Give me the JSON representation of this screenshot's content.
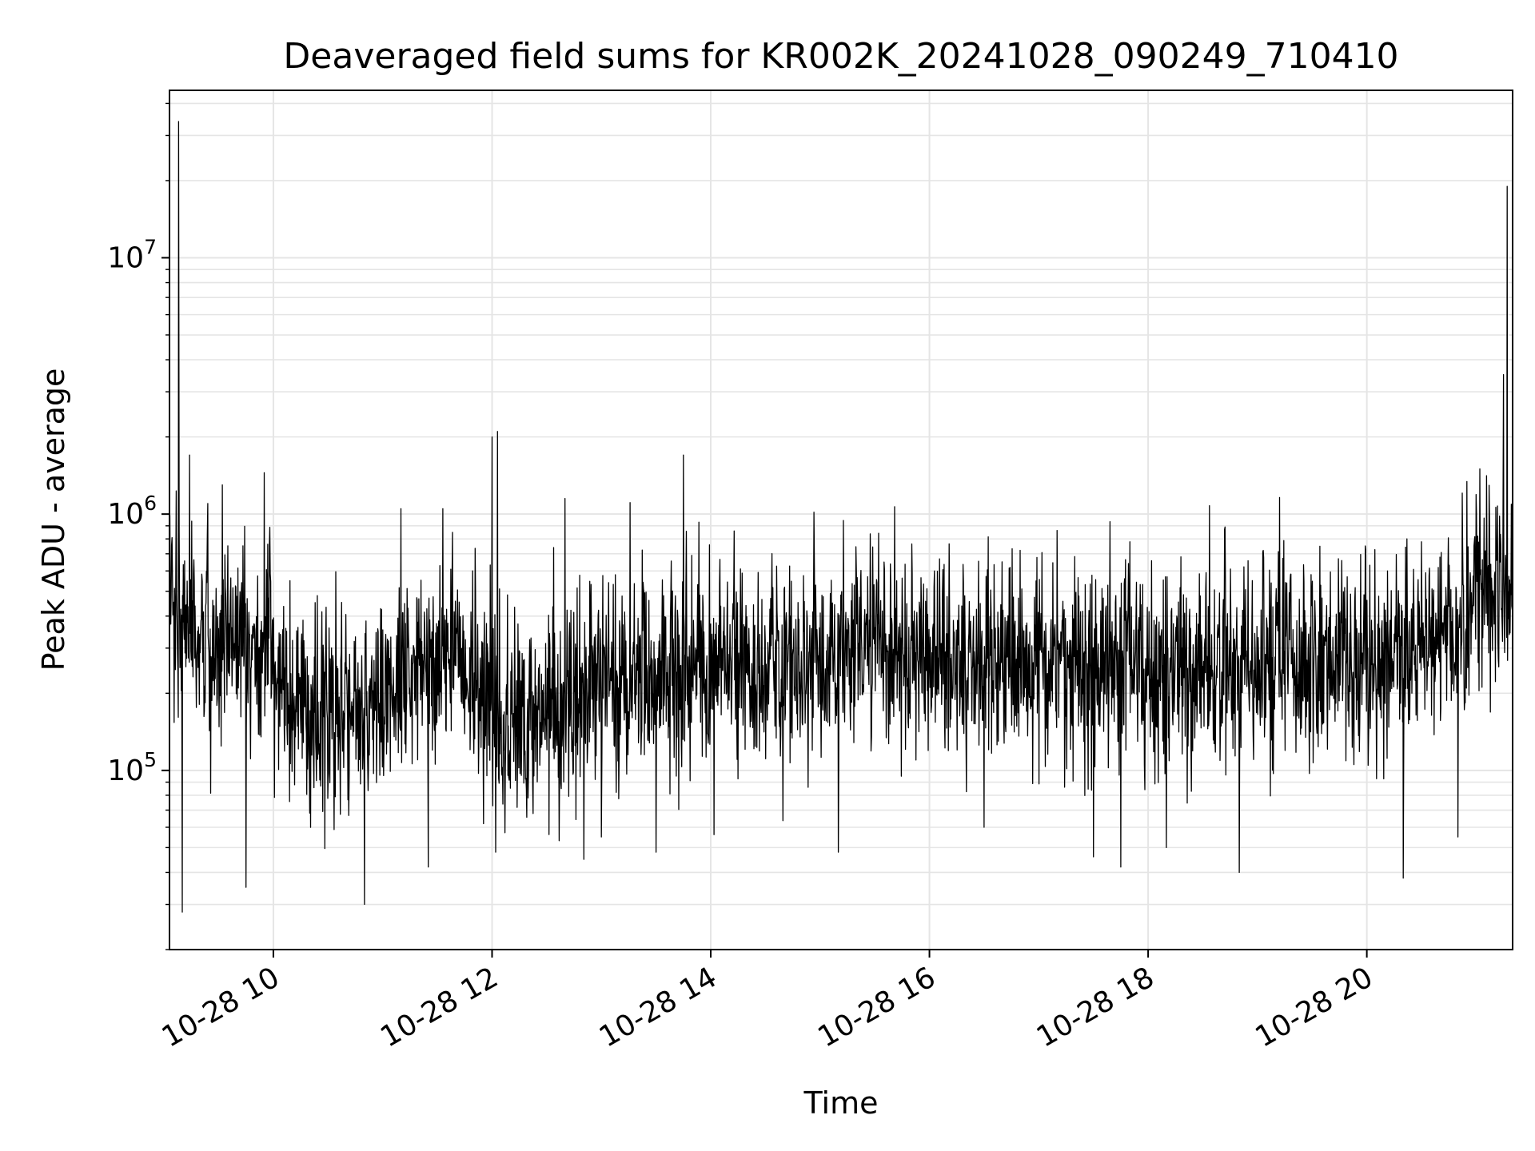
{
  "chart_data": {
    "type": "line",
    "title": "Deaveraged field sums for KR002K_20241028_090249_710410",
    "xlabel": "Time",
    "ylabel": "Peak ADU - average",
    "xlim": [
      "2024-10-28 09:03",
      "2024-10-28 21:20"
    ],
    "ylim": [
      20000,
      45000000
    ],
    "yscale": "log",
    "grid": true,
    "line_color": "#000000",
    "grid_color": "#e5e5e5",
    "x_ticks": [
      {
        "x": "2024-10-28 10:00",
        "label": "10-28 10"
      },
      {
        "x": "2024-10-28 12:00",
        "label": "10-28 12"
      },
      {
        "x": "2024-10-28 14:00",
        "label": "10-28 14"
      },
      {
        "x": "2024-10-28 16:00",
        "label": "10-28 16"
      },
      {
        "x": "2024-10-28 18:00",
        "label": "10-28 18"
      },
      {
        "x": "2024-10-28 20:00",
        "label": "10-28 20"
      }
    ],
    "y_ticks": [
      {
        "value": 100000,
        "base": "10",
        "exp": "5"
      },
      {
        "value": 1000000,
        "base": "10",
        "exp": "6"
      },
      {
        "value": 10000000,
        "base": "10",
        "exp": "7"
      }
    ],
    "series": [
      {
        "baseline": [
          [
            "2024-10-28 09:03",
            400000
          ],
          [
            "2024-10-28 09:30",
            320000
          ],
          [
            "2024-10-28 10:00",
            260000
          ],
          [
            "2024-10-28 10:20",
            170000
          ],
          [
            "2024-10-28 11:00",
            190000
          ],
          [
            "2024-10-28 11:20",
            250000
          ],
          [
            "2024-10-28 11:40",
            300000
          ],
          [
            "2024-10-28 12:00",
            160000
          ],
          [
            "2024-10-28 12:40",
            170000
          ],
          [
            "2024-10-28 13:00",
            210000
          ],
          [
            "2024-10-28 14:00",
            270000
          ],
          [
            "2024-10-28 15:00",
            250000
          ],
          [
            "2024-10-28 15:20",
            330000
          ],
          [
            "2024-10-28 16:00",
            280000
          ],
          [
            "2024-10-28 17:00",
            270000
          ],
          [
            "2024-10-28 18:00",
            250000
          ],
          [
            "2024-10-28 19:00",
            260000
          ],
          [
            "2024-10-28 20:00",
            260000
          ],
          [
            "2024-10-28 20:40",
            320000
          ],
          [
            "2024-10-28 21:00",
            500000
          ],
          [
            "2024-10-28 21:20",
            520000
          ]
        ],
        "peaks": [
          [
            "2024-10-28 09:08",
            34000000
          ],
          [
            "2024-10-28 09:10",
            28000
          ],
          [
            "2024-10-28 09:14",
            1700000
          ],
          [
            "2024-10-28 09:24",
            1100000
          ],
          [
            "2024-10-28 09:32",
            1300000
          ],
          [
            "2024-10-28 09:45",
            35000
          ],
          [
            "2024-10-28 09:55",
            1450000
          ],
          [
            "2024-10-28 10:50",
            30000
          ],
          [
            "2024-10-28 11:10",
            1050000
          ],
          [
            "2024-10-28 11:25",
            42000
          ],
          [
            "2024-10-28 11:33",
            1050000
          ],
          [
            "2024-10-28 12:00",
            2000000
          ],
          [
            "2024-10-28 12:03",
            2100000
          ],
          [
            "2024-10-28 12:02",
            48000
          ],
          [
            "2024-10-28 12:40",
            1150000
          ],
          [
            "2024-10-28 13:00",
            55000
          ],
          [
            "2024-10-28 13:30",
            48000
          ],
          [
            "2024-10-28 13:45",
            1700000
          ],
          [
            "2024-10-28 15:10",
            48000
          ],
          [
            "2024-10-28 16:30",
            60000
          ],
          [
            "2024-10-28 17:30",
            46000
          ],
          [
            "2024-10-28 17:45",
            42000
          ],
          [
            "2024-10-28 17:50",
            780000
          ],
          [
            "2024-10-28 18:10",
            50000
          ],
          [
            "2024-10-28 18:50",
            40000
          ],
          [
            "2024-10-28 20:20",
            38000
          ],
          [
            "2024-10-28 20:22",
            800000
          ],
          [
            "2024-10-28 20:30",
            780000
          ],
          [
            "2024-10-28 20:50",
            55000
          ],
          [
            "2024-10-28 21:02",
            1500000
          ],
          [
            "2024-10-28 21:15",
            3500000
          ],
          [
            "2024-10-28 21:17",
            19000000
          ]
        ]
      }
    ]
  }
}
